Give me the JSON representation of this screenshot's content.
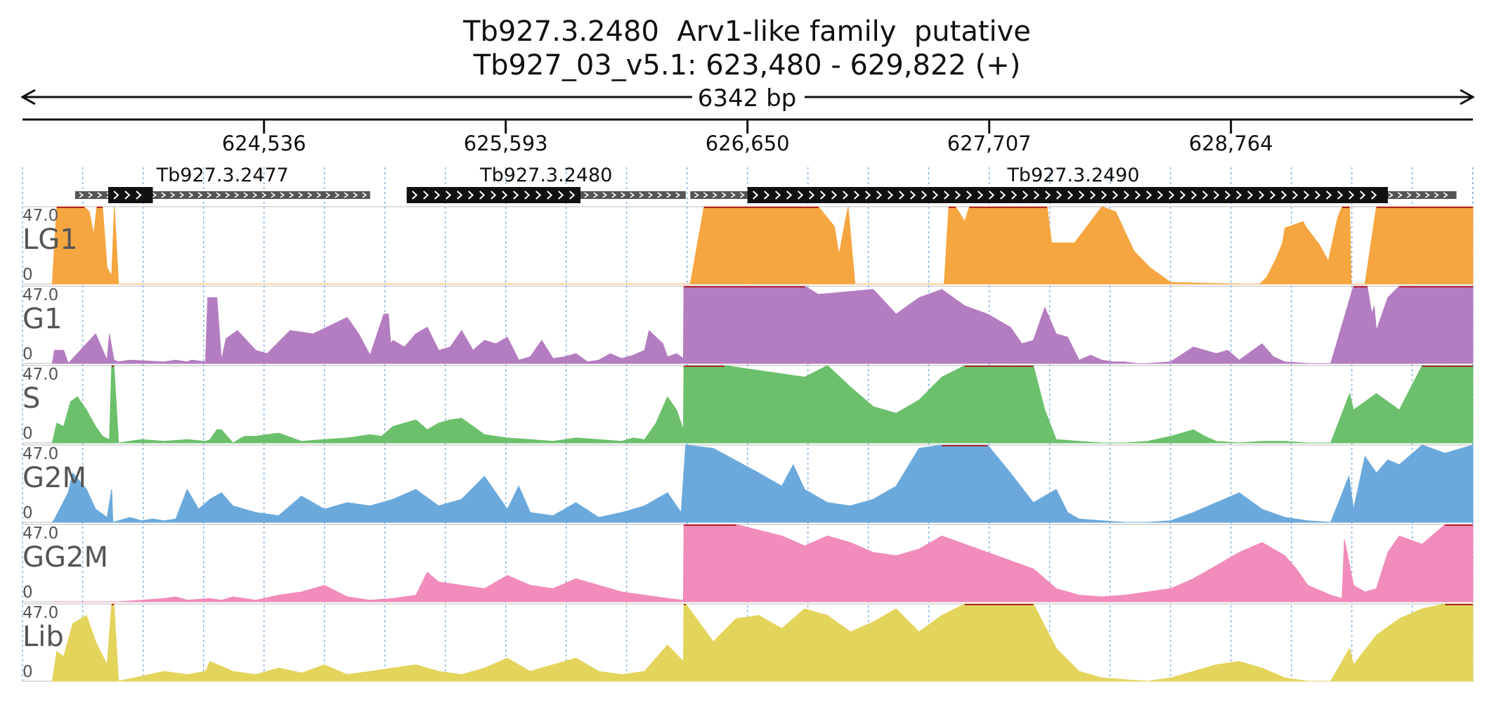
{
  "header": {
    "title_line1": "Tb927.3.2480  Arv1-like family  putative",
    "title_line2": "Tb927_03_v5.1: 623,480 - 629,822 (+)",
    "span_label": "6342 bp"
  },
  "chart_data": {
    "type": "area",
    "title": "Tb927.3.2480  Arv1-like family  putative",
    "subtitle": "Tb927_03_v5.1: 623,480 - 629,822 (+)",
    "chromosome": "Tb927_03_v5.1",
    "strand": "+",
    "xlim": [
      623480,
      629822
    ],
    "span_label": "6342 bp",
    "x_ticks": [
      {
        "value": 624536,
        "label": "624,536"
      },
      {
        "value": 625593,
        "label": "625,593"
      },
      {
        "value": 626650,
        "label": "626,650"
      },
      {
        "value": 627707,
        "label": "627,707"
      },
      {
        "value": 628764,
        "label": "628,764"
      }
    ],
    "genes": [
      {
        "id": "Tb927.3.2477",
        "strand": "+",
        "start": 623710,
        "end": 625000,
        "cds_start": 623855,
        "cds_end": 624050
      },
      {
        "id": "Tb927.3.2480",
        "strand": "+",
        "start": 625160,
        "end": 626380,
        "cds_start": 625160,
        "cds_end": 625920
      },
      {
        "id": "Tb927.3.2490",
        "strand": "+",
        "start": 626400,
        "end": 629750,
        "cds_start": 626650,
        "cds_end": 629450
      }
    ],
    "ylim": [
      0,
      47.0
    ],
    "y_max_label": "47.0",
    "y_min_label": "0",
    "tracks": [
      {
        "name": "LG1",
        "color": "#f5a640",
        "x": [
          623610,
          623630,
          623650,
          623750,
          623772,
          623792,
          623805,
          623830,
          623850,
          623870,
          623882,
          623900,
          626380,
          626400,
          626460,
          626500,
          626580,
          626700,
          626960,
          627030,
          627050,
          627090,
          627120,
          627200,
          627510,
          627530,
          627560,
          627600,
          627620,
          627800,
          627880,
          627890,
          627940,
          627960,
          627980,
          628080,
          628200,
          628260,
          628340,
          628410,
          628460,
          628500,
          628800,
          628890,
          628920,
          628960,
          628990,
          629000,
          629080,
          629090,
          629150,
          629190,
          629230,
          629250,
          629283,
          629290,
          629320,
          629350,
          629400,
          629500,
          629700,
          629822
        ],
        "y": [
          0,
          47,
          47,
          47,
          44,
          30,
          47,
          47,
          10,
          5,
          47,
          0,
          0,
          0,
          47,
          47,
          47,
          47,
          47,
          35,
          18,
          47,
          0,
          0,
          0,
          47,
          47,
          38,
          47,
          47,
          47,
          47,
          47,
          47,
          25,
          25,
          47,
          44,
          20,
          10,
          5,
          1,
          0,
          0,
          4,
          15,
          25,
          34,
          38,
          35,
          24,
          14,
          40,
          47,
          47,
          0,
          0,
          0,
          47,
          47,
          47,
          47
        ]
      },
      {
        "name": "G1",
        "color": "#b47cc1",
        "x": [
          623610,
          623620,
          623660,
          623680,
          623760,
          623800,
          623850,
          623860,
          623880,
          623900,
          623950,
          624100,
          624150,
          624200,
          624220,
          624280,
          624290,
          624330,
          624350,
          624370,
          624420,
          624500,
          624550,
          624650,
          624750,
          624900,
          624950,
          625000,
          625060,
          625080,
          625090,
          625100,
          625150,
          625200,
          625250,
          625300,
          625350,
          625400,
          625450,
          625500,
          625550,
          625600,
          625650,
          625700,
          625750,
          625800,
          625850,
          625900,
          625950,
          626000,
          626050,
          626100,
          626150,
          626200,
          626220,
          626280,
          626300,
          626340,
          626370,
          626372,
          626380,
          626850,
          626900,
          626960,
          627200,
          627300,
          627400,
          627500,
          627600,
          627700,
          627800,
          627850,
          627900,
          627950,
          628000,
          628050,
          628100,
          628150,
          628200,
          628250,
          628300,
          628350,
          628400,
          628500,
          628600,
          628700,
          628750,
          628800,
          628900,
          628950,
          629000,
          629100,
          629200,
          629300,
          629360,
          629380,
          629390,
          629400,
          629450,
          629500,
          629600,
          629700,
          629822
        ],
        "y": [
          0,
          8,
          8,
          0,
          12,
          18,
          2,
          18,
          2,
          1,
          2,
          1,
          2,
          1,
          2,
          1,
          40,
          40,
          2,
          15,
          20,
          8,
          6,
          20,
          18,
          28,
          18,
          5,
          30,
          30,
          12,
          14,
          10,
          18,
          22,
          8,
          10,
          20,
          8,
          14,
          12,
          16,
          2,
          4,
          14,
          3,
          4,
          6,
          1,
          2,
          6,
          3,
          5,
          8,
          20,
          12,
          4,
          6,
          3,
          47,
          47,
          47,
          47,
          42,
          45,
          30,
          40,
          45,
          35,
          30,
          22,
          12,
          14,
          34,
          18,
          16,
          2,
          5,
          2,
          1,
          1,
          0,
          0,
          1,
          10,
          6,
          8,
          2,
          12,
          4,
          1,
          0,
          0,
          47,
          47,
          30,
          35,
          20,
          40,
          47,
          47,
          47,
          47
        ]
      },
      {
        "name": "S",
        "color": "#6cc06c",
        "x": [
          623610,
          623630,
          623660,
          623690,
          623720,
          623760,
          623800,
          623830,
          623860,
          623870,
          623880,
          623900,
          624000,
          624100,
          624200,
          624280,
          624300,
          624330,
          624350,
          624400,
          624450,
          624500,
          624600,
          624700,
          624800,
          624900,
          625000,
          625050,
          625100,
          625150,
          625200,
          625250,
          625300,
          625350,
          625400,
          625500,
          625600,
          625700,
          625800,
          625900,
          626000,
          626100,
          626150,
          626200,
          626250,
          626300,
          626340,
          626370,
          626372,
          626380,
          626550,
          626900,
          627000,
          627100,
          627200,
          627300,
          627400,
          627500,
          627600,
          627700,
          627800,
          627900,
          627950,
          628000,
          628100,
          628200,
          628300,
          628400,
          628500,
          628600,
          628650,
          628700,
          628800,
          628900,
          629000,
          629100,
          629200,
          629283,
          629300,
          629400,
          629500,
          629600,
          629700,
          629822
        ],
        "y": [
          0,
          12,
          10,
          25,
          28,
          20,
          10,
          4,
          2,
          47,
          47,
          0,
          2,
          1,
          2,
          1,
          2,
          8,
          8,
          0,
          4,
          4,
          6,
          1,
          2,
          3,
          5,
          4,
          10,
          12,
          14,
          8,
          12,
          14,
          15,
          5,
          3,
          2,
          1,
          3,
          2,
          1,
          3,
          2,
          12,
          28,
          20,
          8,
          47,
          47,
          47,
          40,
          47,
          34,
          22,
          18,
          26,
          40,
          47,
          47,
          47,
          47,
          20,
          2,
          1,
          0,
          0,
          1,
          4,
          8,
          4,
          1,
          0,
          1,
          1,
          0,
          0,
          30,
          20,
          30,
          20,
          47,
          47,
          47
        ]
      },
      {
        "name": "G2M",
        "color": "#6ba9dc",
        "x": [
          623610,
          623620,
          623680,
          623700,
          623760,
          623800,
          623850,
          623870,
          623875,
          623900,
          623950,
          624000,
          624050,
          624100,
          624150,
          624200,
          624250,
          624300,
          624350,
          624400,
          624500,
          624600,
          624700,
          624800,
          624900,
          625000,
          625100,
          625200,
          625300,
          625400,
          625500,
          625550,
          625600,
          625650,
          625700,
          625800,
          625900,
          626000,
          626100,
          626200,
          626300,
          626360,
          626380,
          626500,
          626700,
          626800,
          626850,
          626900,
          627000,
          627100,
          627200,
          627300,
          627400,
          627500,
          627600,
          627700,
          627800,
          627900,
          628000,
          628050,
          628100,
          628200,
          628300,
          628400,
          628500,
          628600,
          628700,
          628800,
          628900,
          629000,
          629100,
          629200,
          629280,
          629300,
          629350,
          629400,
          629450,
          629500,
          629600,
          629700,
          629822
        ],
        "y": [
          0,
          2,
          18,
          30,
          20,
          8,
          3,
          20,
          0,
          1,
          3,
          1,
          2,
          1,
          2,
          20,
          8,
          14,
          18,
          10,
          6,
          4,
          16,
          8,
          12,
          10,
          14,
          20,
          10,
          14,
          28,
          18,
          8,
          22,
          6,
          4,
          12,
          3,
          6,
          10,
          18,
          6,
          47,
          45,
          30,
          22,
          35,
          20,
          12,
          10,
          14,
          22,
          45,
          47,
          47,
          47,
          30,
          12,
          20,
          6,
          2,
          1,
          0,
          0,
          1,
          6,
          12,
          18,
          8,
          3,
          1,
          0,
          28,
          8,
          40,
          30,
          38,
          35,
          47,
          42,
          47
        ]
      },
      {
        "name": "GG2M",
        "color": "#f18cbb",
        "x": [
          623610,
          623700,
          623800,
          623900,
          624000,
          624100,
          624150,
          624200,
          624300,
          624350,
          624400,
          624500,
          624600,
          624700,
          624800,
          624900,
          625000,
          625100,
          625200,
          625250,
          625300,
          625400,
          625500,
          625600,
          625700,
          625800,
          625900,
          626000,
          626100,
          626200,
          626300,
          626370,
          626372,
          626380,
          626600,
          626800,
          626900,
          627000,
          627100,
          627200,
          627300,
          627400,
          627500,
          627600,
          627700,
          627800,
          627900,
          627950,
          628000,
          628100,
          628200,
          628300,
          628400,
          628500,
          628600,
          628700,
          628800,
          628900,
          629000,
          629050,
          629100,
          629200,
          629250,
          629260,
          629300,
          629350,
          629400,
          629450,
          629500,
          629600,
          629700,
          629822
        ],
        "y": [
          0,
          0,
          0,
          0,
          1,
          2,
          3,
          1,
          2,
          1,
          3,
          1,
          4,
          6,
          10,
          3,
          1,
          2,
          4,
          18,
          12,
          10,
          8,
          16,
          10,
          8,
          14,
          10,
          6,
          4,
          2,
          1,
          47,
          47,
          47,
          40,
          34,
          40,
          36,
          30,
          28,
          32,
          40,
          35,
          30,
          25,
          20,
          14,
          8,
          4,
          3,
          4,
          6,
          8,
          14,
          22,
          30,
          36,
          28,
          20,
          10,
          4,
          2,
          38,
          10,
          6,
          8,
          30,
          40,
          35,
          47,
          47
        ]
      },
      {
        "name": "Lib",
        "color": "#e3d45c",
        "x": [
          623610,
          623630,
          623660,
          623700,
          623760,
          623800,
          623850,
          623870,
          623880,
          623900,
          624000,
          624100,
          624200,
          624280,
          624300,
          624400,
          624500,
          624600,
          624700,
          624800,
          624900,
          625000,
          625100,
          625200,
          625300,
          625400,
          625500,
          625600,
          625700,
          625800,
          625900,
          626000,
          626100,
          626200,
          626300,
          626370,
          626372,
          626380,
          626500,
          626600,
          626700,
          626800,
          626900,
          627000,
          627100,
          627200,
          627300,
          627400,
          627500,
          627600,
          627700,
          627800,
          627900,
          628000,
          628100,
          628200,
          628300,
          628400,
          628500,
          628600,
          628700,
          628800,
          628900,
          629000,
          629100,
          629200,
          629283,
          629300,
          629400,
          629500,
          629600,
          629700,
          629822
        ],
        "y": [
          0,
          18,
          15,
          35,
          40,
          24,
          10,
          47,
          47,
          0,
          3,
          6,
          4,
          6,
          12,
          6,
          4,
          8,
          5,
          10,
          4,
          6,
          8,
          10,
          6,
          4,
          8,
          14,
          6,
          10,
          14,
          6,
          4,
          6,
          22,
          12,
          47,
          47,
          24,
          38,
          40,
          32,
          44,
          40,
          30,
          36,
          44,
          30,
          40,
          47,
          47,
          47,
          47,
          20,
          6,
          2,
          1,
          0,
          2,
          6,
          10,
          12,
          8,
          2,
          0,
          0,
          20,
          10,
          28,
          38,
          44,
          47,
          47
        ]
      }
    ]
  }
}
